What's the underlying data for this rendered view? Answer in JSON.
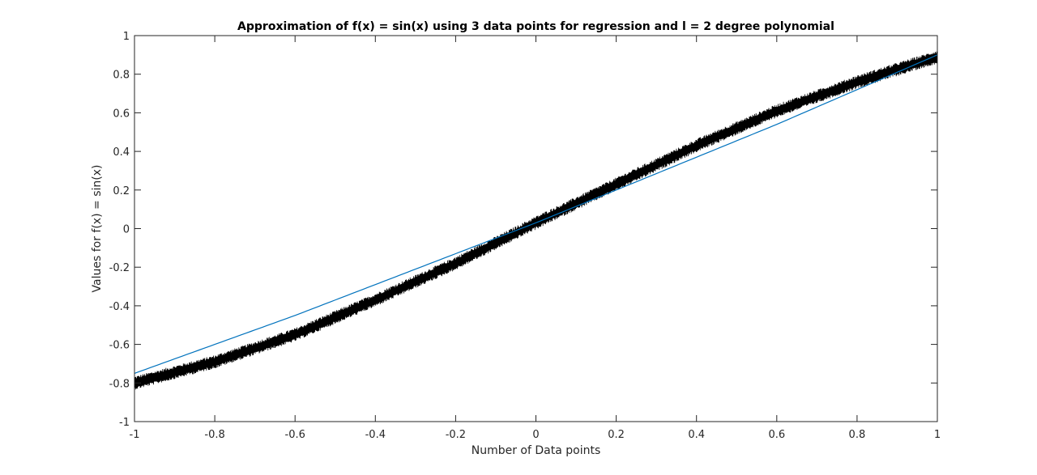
{
  "chart_data": {
    "type": "line",
    "title": "Approximation of f(x) = sin(x) using 3 data points for regression and l = 2 degree polynomial",
    "xlabel": "Number of Data points",
    "ylabel": "Values for f(x) = sin(x)",
    "xlim": [
      -1,
      1
    ],
    "ylim": [
      -1,
      1
    ],
    "xticks": [
      -1,
      -0.8,
      -0.6,
      -0.4,
      -0.2,
      0,
      0.2,
      0.4,
      0.6,
      0.8,
      1
    ],
    "xtick_labels": [
      "-1",
      "-0.8",
      "-0.6",
      "-0.4",
      "-0.2",
      "0",
      "0.2",
      "0.4",
      "0.6",
      "0.8",
      "1"
    ],
    "yticks": [
      -1,
      -0.8,
      -0.6,
      -0.4,
      -0.2,
      0,
      0.2,
      0.4,
      0.6,
      0.8,
      1
    ],
    "ytick_labels": [
      "-1",
      "-0.8",
      "-0.6",
      "-0.4",
      "-0.2",
      "0",
      "0.2",
      "0.4",
      "0.6",
      "0.8",
      "1"
    ],
    "grid": false,
    "series": [
      {
        "color": "#000000",
        "style": "noisy band",
        "x": [
          -1,
          -0.8,
          -0.6,
          -0.4,
          -0.2,
          0,
          0.2,
          0.4,
          0.6,
          0.8,
          1
        ],
        "y": [
          -0.8,
          -0.69,
          -0.55,
          -0.37,
          -0.18,
          0.03,
          0.23,
          0.43,
          0.61,
          0.76,
          0.89
        ],
        "band_half_width": 0.035
      },
      {
        "color": "#0072BD",
        "style": "line",
        "x": [
          -1,
          -0.8,
          -0.6,
          -0.4,
          -0.2,
          0,
          0.2,
          0.4,
          0.6,
          0.8,
          1
        ],
        "y": [
          -0.75,
          -0.6,
          -0.45,
          -0.29,
          -0.13,
          0.03,
          0.2,
          0.37,
          0.54,
          0.72,
          0.9
        ]
      }
    ]
  }
}
